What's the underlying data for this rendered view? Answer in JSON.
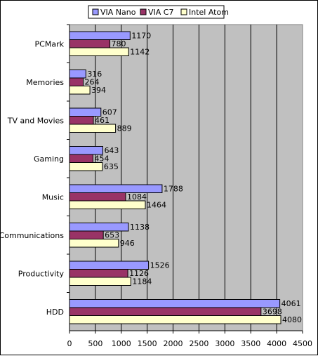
{
  "chart_data": {
    "type": "bar",
    "orientation": "horizontal",
    "categories": [
      "PCMark",
      "Memories",
      "TV and Movies",
      "Gaming",
      "Music",
      "Communications",
      "Productivity",
      "HDD"
    ],
    "series": [
      {
        "name": "VIA Nano",
        "color": "#9999ff",
        "values": [
          1170,
          316,
          607,
          643,
          1788,
          1138,
          1526,
          4061
        ]
      },
      {
        "name": "VIA C7",
        "color": "#993366",
        "values": [
          780,
          264,
          461,
          454,
          1084,
          653,
          1126,
          3698
        ]
      },
      {
        "name": "Intel Atom",
        "color": "#ffffcc",
        "values": [
          1142,
          394,
          889,
          635,
          1464,
          946,
          1184,
          4080
        ]
      }
    ],
    "xlim": [
      0,
      4500
    ],
    "xticks": [
      "0",
      "500",
      "1000",
      "1500",
      "2000",
      "2500",
      "3000",
      "3500",
      "4000",
      "4500"
    ],
    "grid": true,
    "legend_position": "top",
    "plot_background": "#c0c0c0"
  }
}
